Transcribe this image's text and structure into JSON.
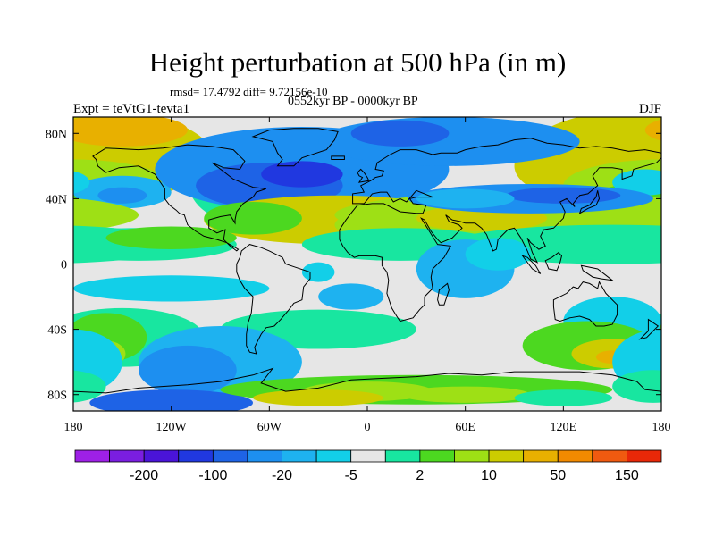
{
  "header": {
    "title": "Height perturbation at 500 hPa (in m)",
    "stats": "rmsd= 17.4792 diff= 9.72156e-10",
    "period": "0552kyr BP - 0000kyr BP",
    "left": "Expt = teVtG1-tevta1",
    "right": "DJF"
  },
  "chart_data": {
    "type": "heatmap",
    "title": "Height perturbation at 500 hPa (in m)",
    "x_tick_labels": [
      "180",
      "120W",
      "60W",
      "0",
      "60E",
      "120E",
      "180"
    ],
    "x_ticks": [
      -180,
      -120,
      -60,
      0,
      60,
      120,
      180
    ],
    "y_tick_labels": [
      "80N",
      "40N",
      "0",
      "40S",
      "80S"
    ],
    "y_ticks": [
      80,
      40,
      0,
      -40,
      -80
    ],
    "xlim": [
      -180,
      180
    ],
    "ylim": [
      -90,
      90
    ],
    "colorbar": {
      "colors": [
        "#9e20e6",
        "#7a1ee0",
        "#4a14d8",
        "#2038e0",
        "#1e63e6",
        "#1d8ff0",
        "#1eb2f0",
        "#12cfe8",
        "#e6e6e6",
        "#18e6a0",
        "#4cd820",
        "#9ee015",
        "#cccc00",
        "#e8b000",
        "#f28a00",
        "#f05a10",
        "#e82808"
      ],
      "tick_labels": [
        "-200",
        "-100",
        "-20",
        "-5",
        "2",
        "10",
        "50",
        "150"
      ],
      "tick_boundaries": [
        2,
        4,
        6,
        8,
        10,
        12,
        14,
        16
      ]
    }
  }
}
